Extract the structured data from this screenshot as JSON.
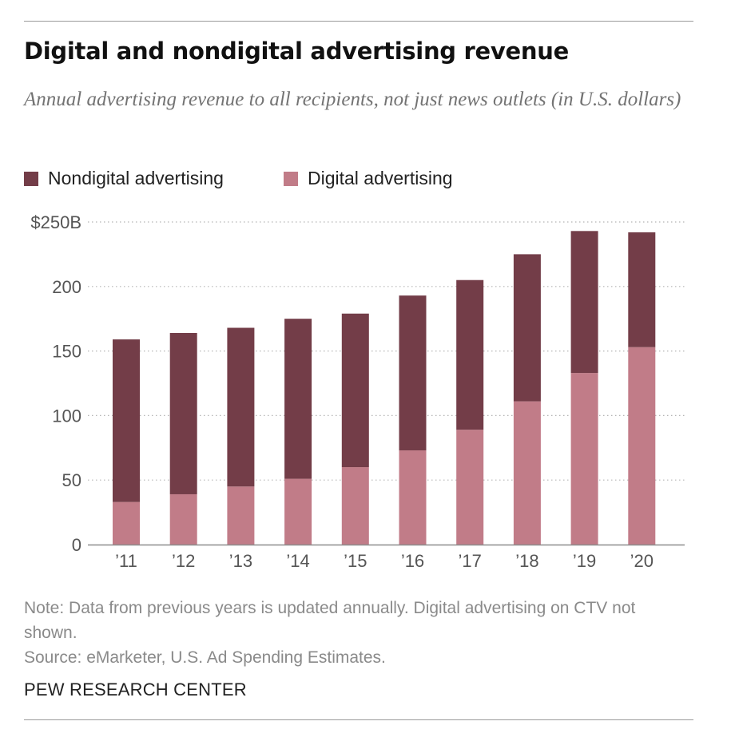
{
  "title": "Digital and nondigital advertising revenue",
  "subtitle": "Annual advertising revenue to all recipients, not just news outlets (in U.S. dollars)",
  "legend": {
    "nondigital": "Nondigital advertising",
    "digital": "Digital advertising"
  },
  "colors": {
    "nondigital": "#733d48",
    "digital": "#c17c88",
    "grid": "#b5b5b5",
    "axis": "#8c8c8c"
  },
  "chart_data": {
    "type": "bar",
    "stacked": true,
    "categories": [
      "’11",
      "’12",
      "’13",
      "’14",
      "’15",
      "’16",
      "’17",
      "’18",
      "’19",
      "’20"
    ],
    "series": [
      {
        "name": "Digital advertising",
        "values": [
          33,
          39,
          45,
          51,
          60,
          73,
          89,
          111,
          133,
          153
        ]
      },
      {
        "name": "Nondigital advertising",
        "values": [
          126,
          125,
          123,
          124,
          119,
          120,
          116,
          114,
          110,
          89
        ]
      }
    ],
    "yticks": [
      0,
      50,
      100,
      150,
      200,
      250
    ],
    "ytick_labels": [
      "0",
      "50",
      "100",
      "150",
      "200",
      "$250B"
    ],
    "ylim": [
      0,
      250
    ],
    "grid": true,
    "legend_position": "top-left"
  },
  "note": "Note: Data from previous years is updated annually. Digital advertising on CTV not shown.",
  "source": "Source: eMarketer, U.S. Ad Spending Estimates.",
  "brand": "PEW RESEARCH CENTER"
}
